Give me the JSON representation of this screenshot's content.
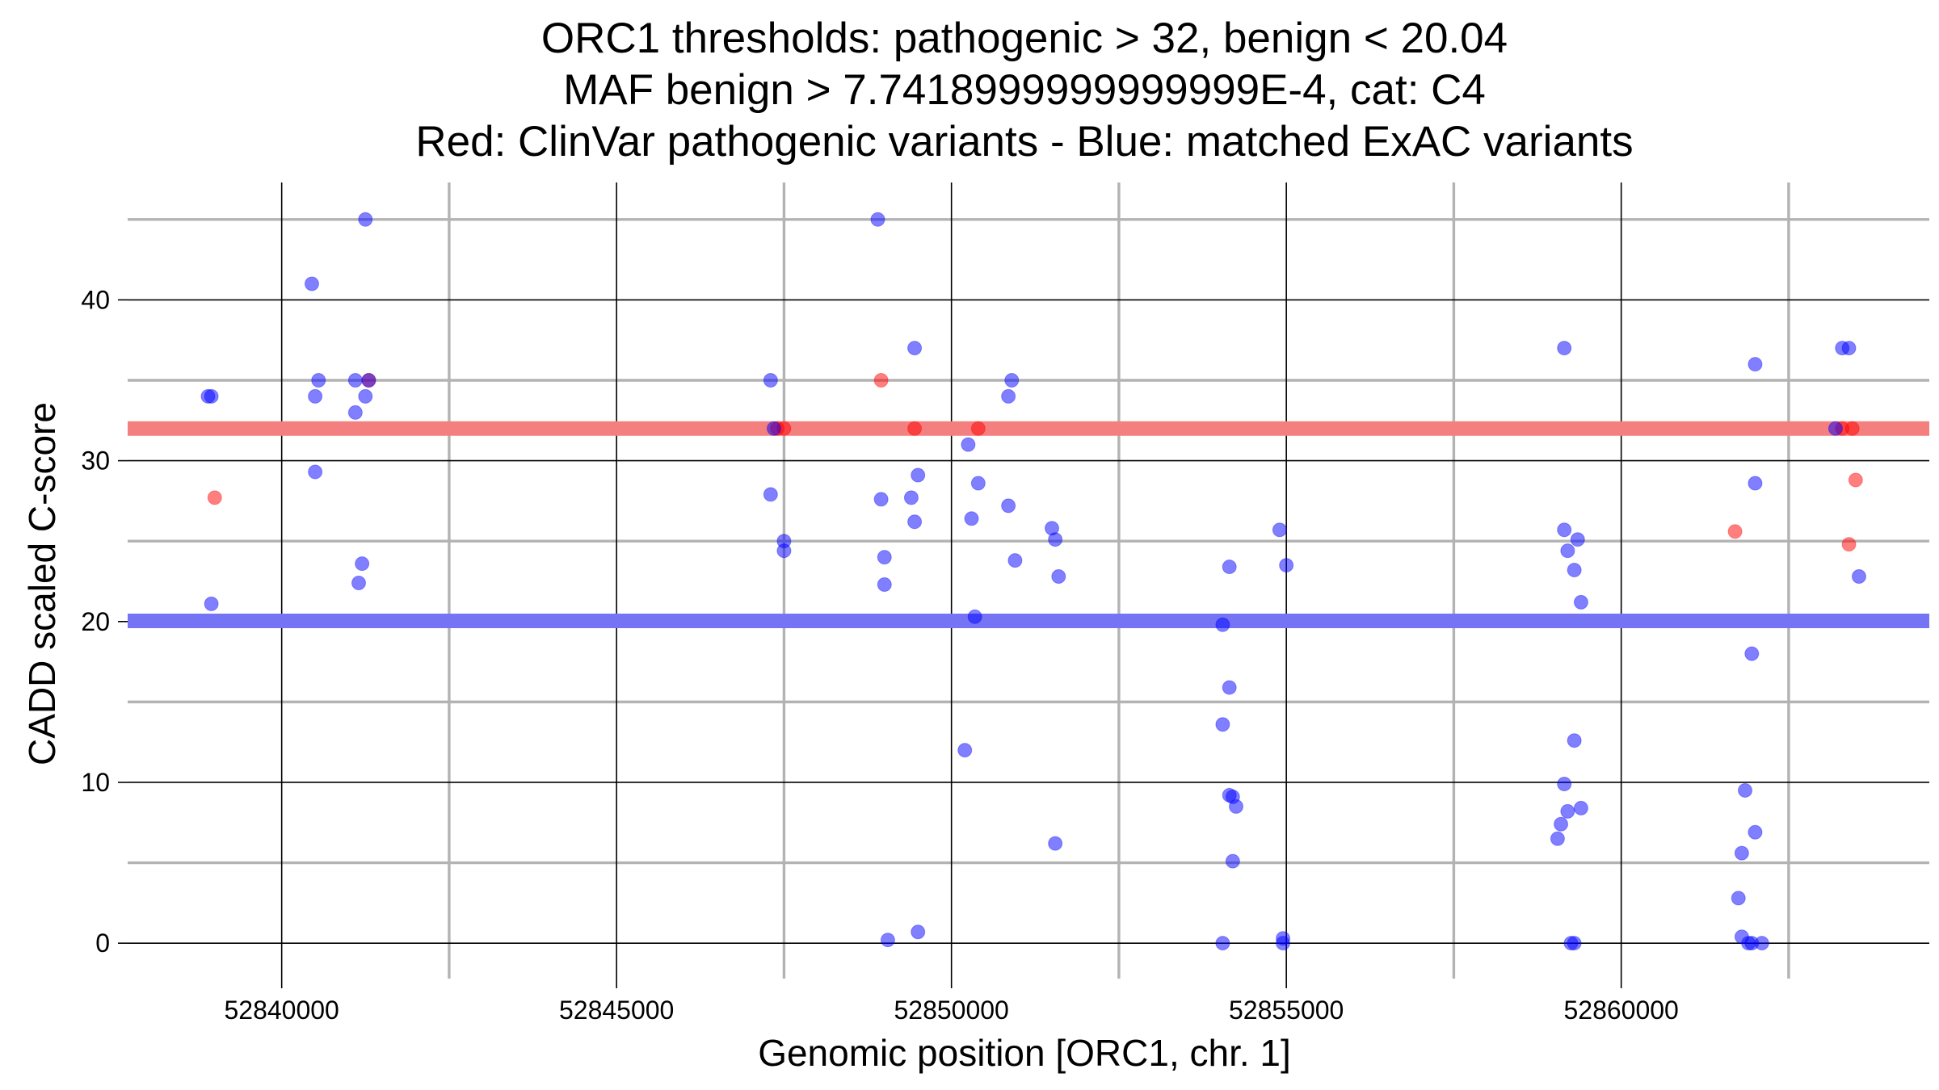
{
  "chart_data": {
    "type": "scatter",
    "title_lines": [
      "ORC1 thresholds: pathogenic > 32, benign < 20.04",
      "MAF benign > 7.7418999999999999E-4, cat: C4",
      "Red: ClinVar pathogenic variants - Blue: matched ExAC variants"
    ],
    "xlabel": "Genomic position [ORC1, chr. 1]",
    "ylabel": "CADD scaled C-score",
    "xlim": [
      52837700,
      52864600
    ],
    "ylim": [
      -2.2,
      47.5
    ],
    "x_ticks": [
      52840000,
      52845000,
      52850000,
      52855000,
      52860000
    ],
    "x_tick_labels": [
      "52840000",
      "52845000",
      "52850000",
      "52855000",
      "52860000"
    ],
    "x_minor": [
      52842500,
      52847500,
      52852500,
      52857500,
      52862500
    ],
    "y_ticks": [
      0,
      10,
      20,
      30,
      40
    ],
    "y_tick_labels": [
      "0",
      "10",
      "20",
      "30",
      "40"
    ],
    "y_minor": [
      5,
      15,
      25,
      35,
      45
    ],
    "grid": true,
    "thresholds": [
      {
        "name": "pathogenic",
        "value": 32,
        "color": "#f47f7f"
      },
      {
        "name": "benign",
        "value": 20.04,
        "color": "#7474f4"
      }
    ],
    "series": [
      {
        "name": "ClinVar pathogenic variants",
        "color": "#ff0000",
        "points": [
          [
            52839000,
            27.7
          ],
          [
            52841300,
            35
          ],
          [
            52847400,
            32
          ],
          [
            52847500,
            32
          ],
          [
            52848950,
            35
          ],
          [
            52849450,
            32
          ],
          [
            52850400,
            32
          ],
          [
            52861700,
            25.6
          ],
          [
            52863300,
            32
          ],
          [
            52863400,
            24.8
          ],
          [
            52863450,
            32
          ],
          [
            52863500,
            28.8
          ]
        ]
      },
      {
        "name": "matched ExAC variants",
        "color": "#0000ff",
        "points": [
          [
            52838900,
            34
          ],
          [
            52838950,
            34
          ],
          [
            52838950,
            21.1
          ],
          [
            52840450,
            41
          ],
          [
            52840500,
            34
          ],
          [
            52840550,
            35
          ],
          [
            52840500,
            29.3
          ],
          [
            52841100,
            35
          ],
          [
            52841100,
            33
          ],
          [
            52841150,
            22.4
          ],
          [
            52841200,
            23.6
          ],
          [
            52841250,
            34
          ],
          [
            52841250,
            45
          ],
          [
            52841300,
            35
          ],
          [
            52847300,
            35
          ],
          [
            52847300,
            27.9
          ],
          [
            52847350,
            32
          ],
          [
            52847500,
            25
          ],
          [
            52847500,
            24.4
          ],
          [
            52848900,
            45
          ],
          [
            52848950,
            27.6
          ],
          [
            52849000,
            24
          ],
          [
            52849000,
            22.3
          ],
          [
            52849050,
            0.2
          ],
          [
            52849400,
            27.7
          ],
          [
            52849450,
            37
          ],
          [
            52849450,
            26.2
          ],
          [
            52849500,
            29.1
          ],
          [
            52849500,
            0.7
          ],
          [
            52850200,
            12
          ],
          [
            52850250,
            31
          ],
          [
            52850300,
            26.4
          ],
          [
            52850350,
            20.3
          ],
          [
            52850400,
            28.6
          ],
          [
            52850850,
            34
          ],
          [
            52850850,
            27.2
          ],
          [
            52850900,
            35
          ],
          [
            52850950,
            23.8
          ],
          [
            52851500,
            25.8
          ],
          [
            52851550,
            25.1
          ],
          [
            52851600,
            22.8
          ],
          [
            52851550,
            6.2
          ],
          [
            52854050,
            19.8
          ],
          [
            52854050,
            13.6
          ],
          [
            52854050,
            0
          ],
          [
            52854150,
            23.4
          ],
          [
            52854150,
            15.9
          ],
          [
            52854150,
            9.2
          ],
          [
            52854200,
            9.1
          ],
          [
            52854200,
            5.1
          ],
          [
            52854250,
            8.5
          ],
          [
            52854900,
            25.7
          ],
          [
            52854950,
            0
          ],
          [
            52854950,
            0.3
          ],
          [
            52855000,
            23.5
          ],
          [
            52859050,
            6.5
          ],
          [
            52859100,
            7.4
          ],
          [
            52859150,
            37
          ],
          [
            52859150,
            25.7
          ],
          [
            52859150,
            9.9
          ],
          [
            52859200,
            24.4
          ],
          [
            52859200,
            8.2
          ],
          [
            52859250,
            0
          ],
          [
            52859300,
            0
          ],
          [
            52859300,
            12.6
          ],
          [
            52859300,
            23.2
          ],
          [
            52859350,
            25.1
          ],
          [
            52859400,
            21.2
          ],
          [
            52859400,
            8.4
          ],
          [
            52861750,
            2.8
          ],
          [
            52861800,
            5.6
          ],
          [
            52861800,
            0.4
          ],
          [
            52861850,
            9.5
          ],
          [
            52861900,
            0
          ],
          [
            52861950,
            18
          ],
          [
            52861950,
            0
          ],
          [
            52862000,
            28.6
          ],
          [
            52862000,
            6.9
          ],
          [
            52862000,
            36
          ],
          [
            52862100,
            0
          ],
          [
            52863200,
            32
          ],
          [
            52863300,
            37
          ],
          [
            52863400,
            37
          ],
          [
            52863550,
            22.8
          ]
        ]
      }
    ]
  }
}
